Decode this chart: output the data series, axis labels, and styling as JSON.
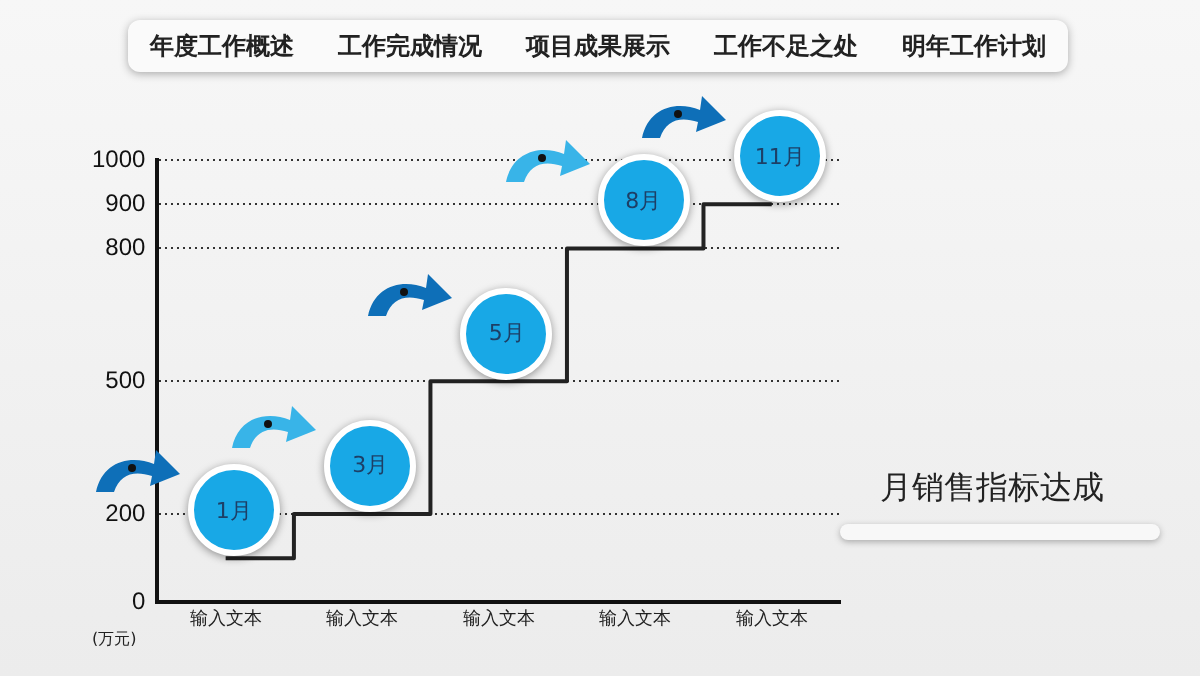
{
  "chart_data": {
    "type": "step",
    "title": "月销售指标达成",
    "ylabel": "(万元)",
    "categories": [
      "输入文本",
      "输入文本",
      "输入文本",
      "输入文本",
      "输入文本"
    ],
    "values": [
      100,
      200,
      500,
      800,
      900
    ],
    "color": "#222222",
    "ylim": [
      0,
      1000
    ],
    "yticks": [
      0,
      200,
      500,
      800,
      900,
      1000
    ],
    "grid": "y",
    "marker": "none",
    "line_style": "solid",
    "annotations": [
      "年度工作概述",
      "工作完成情况",
      "项目成果展示",
      "工作不足之处",
      "明年工作计划",
      "1月",
      "3月",
      "5月",
      "8月",
      "11月"
    ]
  }
}
